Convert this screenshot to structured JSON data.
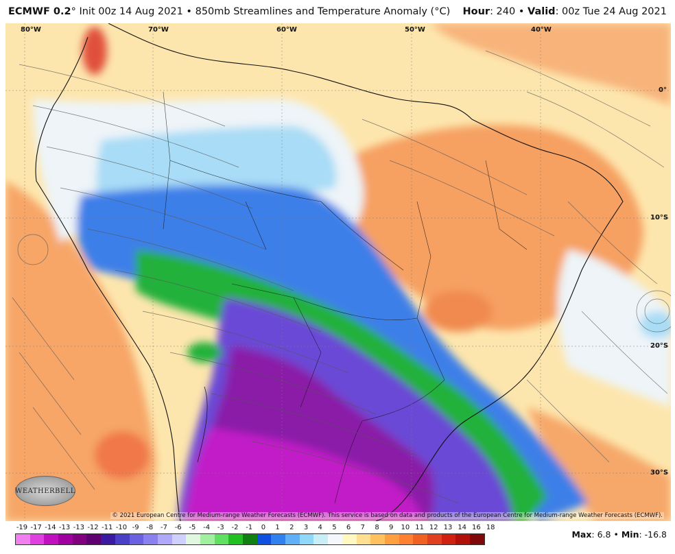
{
  "header": {
    "model": "ECMWF 0.2",
    "model_suffix": "°",
    "init_text": "Init 00z 14 Aug 2021",
    "bullet": "•",
    "product": "850mb Streamlines and Temperature Anomaly (°C)",
    "hour_label": "Hour",
    "hour_value": ": 240",
    "valid_label": "Valid",
    "valid_value": ": 00z Tue 24 Aug 2021"
  },
  "map": {
    "lon_labels": [
      "80°W",
      "70°W",
      "60°W",
      "50°W",
      "40°W"
    ],
    "lat_labels": [
      "0°",
      "10°S",
      "20°S",
      "30°S"
    ],
    "copyright": "© 2021 European Centre for Medium-range Weather Forecasts (ECMWF). This service is based on data and products of the European Centre for Medium-range Weather Forecasts (ECMWF).",
    "logo_text": "WEATHERBELL"
  },
  "colorbar": {
    "labels": [
      "-19",
      "-17",
      "-14",
      "-13",
      "-13",
      "-12",
      "-11",
      "-10",
      "-9",
      "-8",
      "-7",
      "-6",
      "-5",
      "-4",
      "-3",
      "-2",
      "-1",
      "0",
      "1",
      "2",
      "3",
      "4",
      "5",
      "6",
      "7",
      "8",
      "9",
      "10",
      "11",
      "12",
      "13",
      "14",
      "16",
      "18"
    ],
    "colors": [
      "#f080f0",
      "#e040e0",
      "#c010c0",
      "#a000a0",
      "#800080",
      "#600070",
      "#3a1aa0",
      "#4a40c8",
      "#6a60e0",
      "#8a80f0",
      "#b0a8f8",
      "#d0d0ff",
      "#e0f8e0",
      "#a0f0a0",
      "#60e060",
      "#20c020",
      "#108010",
      "#1050e0",
      "#3080f0",
      "#60b0f8",
      "#90d8f8",
      "#c8eef8",
      "#f4f8fc",
      "#fff8c0",
      "#ffe090",
      "#ffc060",
      "#ffa040",
      "#ff8030",
      "#f06020",
      "#e04020",
      "#d02010",
      "#b01008",
      "#800808",
      "#600000",
      "#503020",
      "#806040",
      "#a08060",
      "#c0a080",
      "#e0c0a0",
      "#f0d8c8",
      "#f8e8e8",
      "#f8c8c8",
      "#f0a8a8",
      "#e08888",
      "#d06060"
    ],
    "max_label": "Max",
    "max_value": ": 6.8",
    "sep": "•",
    "min_label": "Min",
    "min_value": ": -16.8"
  }
}
